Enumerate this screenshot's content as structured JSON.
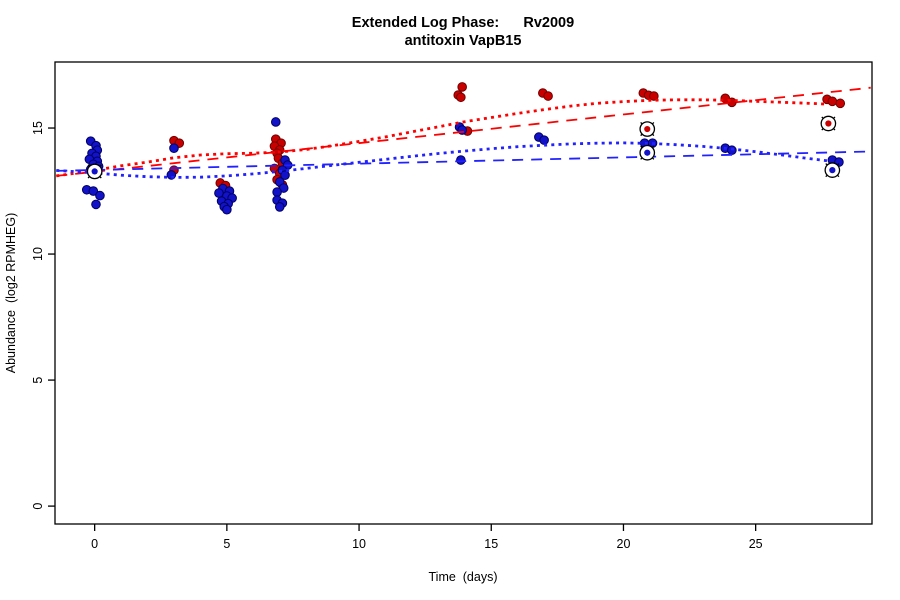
{
  "figure": {
    "background": "#ffffff"
  },
  "chart_data": {
    "type": "scatter",
    "title": "Extended Log Phase:      Rv2009",
    "subtitle": "antitoxin VapB15",
    "xlabel": "Time  (days)",
    "ylabel": "Abundance  (log2 RPMHEG)",
    "xlim": [
      -1.5,
      29.4
    ],
    "ylim": [
      -0.71,
      17.62
    ],
    "xticks": [
      0,
      5,
      10,
      15,
      20,
      25
    ],
    "yticks": [
      0,
      5,
      10,
      15
    ],
    "grid": false,
    "legend": "none",
    "colors": {
      "red_point_fill": "#c80000",
      "red_point_edge": "#700000",
      "blue_point_fill": "#1212c8",
      "blue_point_edge": "#000060",
      "red_line": "#ff0000",
      "blue_line": "#2222ff",
      "axis": "#000000"
    },
    "series": [
      {
        "name": "red-points",
        "kind": "points",
        "color_key": "red",
        "points": [
          [
            3.0,
            14.5
          ],
          [
            3.2,
            14.4
          ],
          [
            3.0,
            13.33
          ],
          [
            4.75,
            12.82
          ],
          [
            4.95,
            12.72
          ],
          [
            6.85,
            14.56
          ],
          [
            7.05,
            14.4
          ],
          [
            6.8,
            14.28
          ],
          [
            7.0,
            14.13
          ],
          [
            6.9,
            14.0
          ],
          [
            6.95,
            13.8
          ],
          [
            7.1,
            13.6
          ],
          [
            6.8,
            13.4
          ],
          [
            7.0,
            13.2
          ],
          [
            6.9,
            12.95
          ],
          [
            7.1,
            12.75
          ],
          [
            13.9,
            16.63
          ],
          [
            13.75,
            16.31
          ],
          [
            13.85,
            16.22
          ],
          [
            14.1,
            14.88
          ],
          [
            16.95,
            16.39
          ],
          [
            17.15,
            16.27
          ],
          [
            20.75,
            16.39
          ],
          [
            20.95,
            16.3
          ],
          [
            21.15,
            16.27
          ],
          [
            23.85,
            16.18
          ],
          [
            24.1,
            16.02
          ],
          [
            27.7,
            16.14
          ],
          [
            27.9,
            16.06
          ],
          [
            28.2,
            15.98
          ]
        ]
      },
      {
        "name": "blue-points",
        "kind": "points",
        "color_key": "blue",
        "points": [
          [
            -0.15,
            14.48
          ],
          [
            0.05,
            14.3
          ],
          [
            0.1,
            14.12
          ],
          [
            -0.1,
            14.0
          ],
          [
            0.05,
            13.88
          ],
          [
            -0.2,
            13.76
          ],
          [
            0.1,
            13.68
          ],
          [
            -0.05,
            13.56
          ],
          [
            0.15,
            13.48
          ],
          [
            -0.15,
            13.36
          ],
          [
            0.05,
            13.25
          ],
          [
            0.0,
            13.17
          ],
          [
            -0.3,
            12.55
          ],
          [
            -0.05,
            12.5
          ],
          [
            0.2,
            12.32
          ],
          [
            0.05,
            11.97
          ],
          [
            3.0,
            14.2
          ],
          [
            2.9,
            13.14
          ],
          [
            4.85,
            12.6
          ],
          [
            5.1,
            12.5
          ],
          [
            4.7,
            12.42
          ],
          [
            5.0,
            12.3
          ],
          [
            5.2,
            12.22
          ],
          [
            4.8,
            12.1
          ],
          [
            5.05,
            12.0
          ],
          [
            4.9,
            11.88
          ],
          [
            5.0,
            11.76
          ],
          [
            6.85,
            15.24
          ],
          [
            7.2,
            13.73
          ],
          [
            7.3,
            13.53
          ],
          [
            7.1,
            13.33
          ],
          [
            7.2,
            13.13
          ],
          [
            7.0,
            12.86
          ],
          [
            7.15,
            12.62
          ],
          [
            6.9,
            12.46
          ],
          [
            6.9,
            12.14
          ],
          [
            7.1,
            12.02
          ],
          [
            7.0,
            11.87
          ],
          [
            13.8,
            15.04
          ],
          [
            13.9,
            14.92
          ],
          [
            13.85,
            13.73
          ],
          [
            16.8,
            14.64
          ],
          [
            17.0,
            14.52
          ],
          [
            20.8,
            14.4
          ],
          [
            21.1,
            14.4
          ],
          [
            23.85,
            14.2
          ],
          [
            24.1,
            14.12
          ],
          [
            27.9,
            13.73
          ],
          [
            28.15,
            13.65
          ]
        ]
      },
      {
        "name": "red-circled-points",
        "kind": "circled",
        "color_key": "red",
        "points": [
          [
            20.9,
            14.96
          ],
          [
            27.75,
            15.18
          ]
        ]
      },
      {
        "name": "blue-circled-points",
        "kind": "circled",
        "color_key": "blue",
        "points": [
          [
            0.0,
            13.28
          ],
          [
            20.9,
            14.02
          ],
          [
            27.9,
            13.33
          ]
        ]
      },
      {
        "name": "red-loess-curve",
        "kind": "line",
        "style": "dotted",
        "width": 2.8,
        "color_key": "red",
        "points": [
          [
            -1.45,
            13.1
          ],
          [
            0,
            13.32
          ],
          [
            1,
            13.5
          ],
          [
            2,
            13.65
          ],
          [
            3,
            13.82
          ],
          [
            4,
            13.93
          ],
          [
            5,
            13.98
          ],
          [
            6,
            14.0
          ],
          [
            7,
            14.05
          ],
          [
            8,
            14.15
          ],
          [
            9,
            14.3
          ],
          [
            10,
            14.47
          ],
          [
            11,
            14.65
          ],
          [
            12,
            14.85
          ],
          [
            13,
            15.05
          ],
          [
            14,
            15.25
          ],
          [
            15,
            15.42
          ],
          [
            16,
            15.58
          ],
          [
            17,
            15.73
          ],
          [
            18,
            15.87
          ],
          [
            19,
            15.98
          ],
          [
            20,
            16.05
          ],
          [
            21,
            16.1
          ],
          [
            22,
            16.12
          ],
          [
            23,
            16.12
          ],
          [
            24,
            16.1
          ],
          [
            25,
            16.06
          ],
          [
            26,
            16.02
          ],
          [
            27,
            15.98
          ],
          [
            27.7,
            15.95
          ]
        ]
      },
      {
        "name": "red-linear-fit",
        "kind": "line",
        "style": "dashed",
        "width": 1.8,
        "color_key": "red",
        "points": [
          [
            -1.45,
            13.1
          ],
          [
            29.35,
            16.6
          ]
        ]
      },
      {
        "name": "blue-loess-curve",
        "kind": "line",
        "style": "dotted",
        "width": 2.8,
        "color_key": "blue",
        "points": [
          [
            -1.45,
            13.32
          ],
          [
            0,
            13.22
          ],
          [
            1,
            13.13
          ],
          [
            2,
            13.07
          ],
          [
            3,
            13.04
          ],
          [
            4,
            13.05
          ],
          [
            5,
            13.1
          ],
          [
            6,
            13.18
          ],
          [
            7,
            13.28
          ],
          [
            8,
            13.4
          ],
          [
            9,
            13.52
          ],
          [
            10,
            13.64
          ],
          [
            11,
            13.76
          ],
          [
            12,
            13.88
          ],
          [
            13,
            13.99
          ],
          [
            14,
            14.09
          ],
          [
            15,
            14.18
          ],
          [
            16,
            14.26
          ],
          [
            17,
            14.32
          ],
          [
            18,
            14.37
          ],
          [
            19,
            14.4
          ],
          [
            20,
            14.41
          ],
          [
            21,
            14.39
          ],
          [
            22,
            14.34
          ],
          [
            23,
            14.27
          ],
          [
            24,
            14.18
          ],
          [
            25,
            14.06
          ],
          [
            26,
            13.93
          ],
          [
            27,
            13.79
          ],
          [
            27.7,
            13.7
          ]
        ]
      },
      {
        "name": "blue-linear-fit",
        "kind": "line",
        "style": "dashed",
        "width": 1.8,
        "color_key": "blue",
        "points": [
          [
            -1.45,
            13.3
          ],
          [
            29.35,
            14.07
          ]
        ]
      }
    ]
  }
}
